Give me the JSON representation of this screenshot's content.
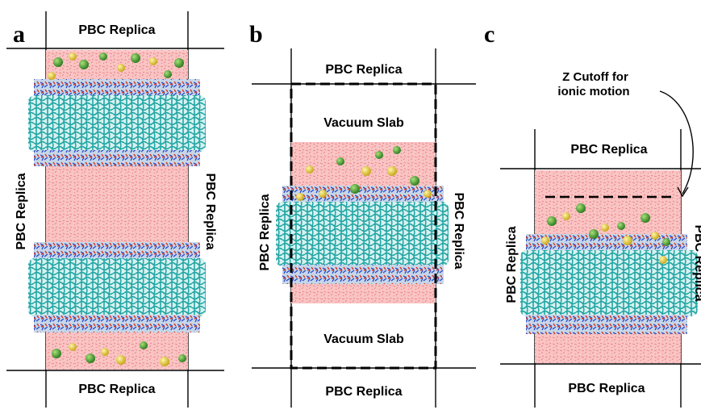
{
  "panels": [
    {
      "letter": "a",
      "top_label": "PBC Replica",
      "bottom_label": "PBC Replica",
      "left_label": "PBC Replica",
      "right_label": "PBC Replica"
    },
    {
      "letter": "b",
      "top_label": "PBC Replica",
      "bottom_label": "PBC Replica",
      "left_label": "PBC Replica",
      "right_label": "PBC Replica",
      "vacuum_top": "Vacuum Slab",
      "vacuum_bottom": "Vacuum Slab"
    },
    {
      "letter": "c",
      "top_label": "PBC Replica",
      "bottom_label": "PBC Replica",
      "left_label": "PBC Replica",
      "right_label": "PBC Replica",
      "cutoff_line1": "Z Cutoff for",
      "cutoff_line2": "ionic motion"
    }
  ],
  "colors": {
    "water": "#f7b9b9",
    "water_dots": "#e85a5a",
    "lipid_tails": "#2fb2b0",
    "headgroup_blue": "#2846c8",
    "headgroup_red": "#d23a2a",
    "ion_green": "#3f9a2f",
    "ion_yellow": "#e8d23c"
  }
}
